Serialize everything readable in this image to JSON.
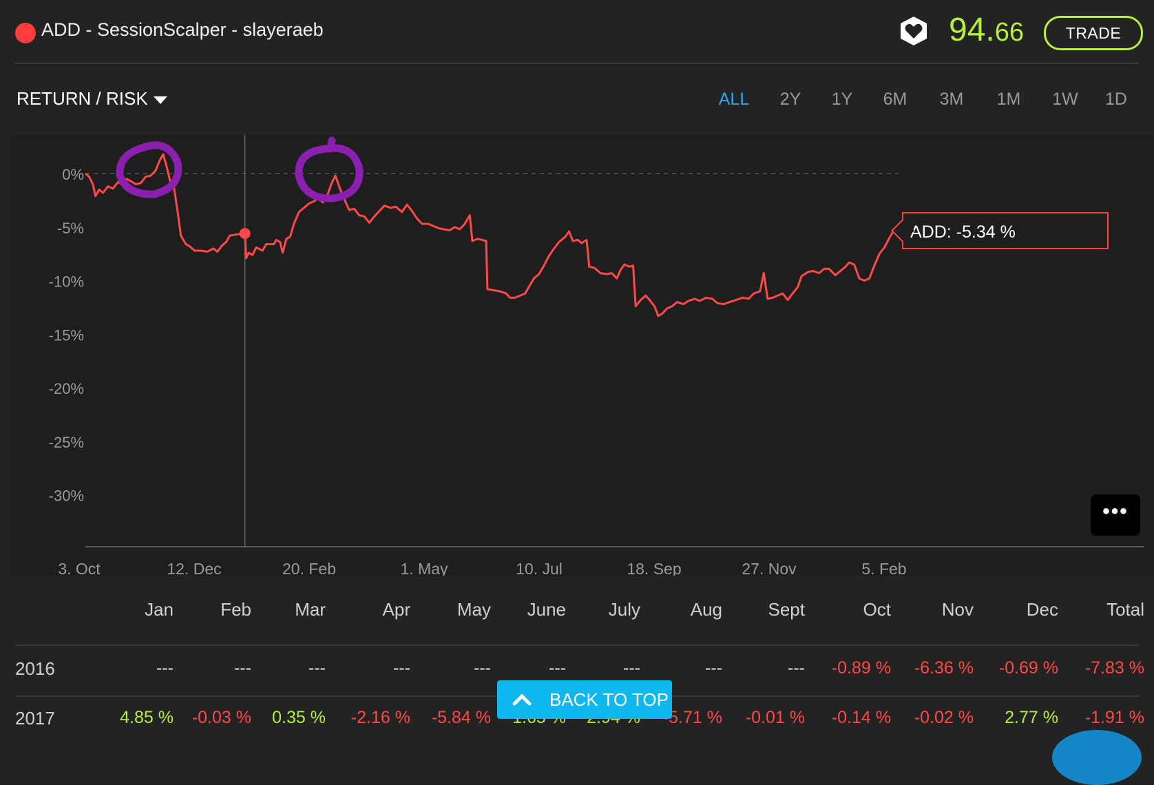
{
  "header": {
    "title": "ADD - SessionScalper - slayeraeb",
    "score_main": "94.",
    "score_decimal": "66",
    "trade_label": "TRADE",
    "favorite_icon": "heart-shield-icon",
    "status_color": "#ff3b3b"
  },
  "toolbar": {
    "metric_label": "RETURN / RISK",
    "ranges": [
      "ALL",
      "2Y",
      "1Y",
      "6M",
      "3M",
      "1M",
      "1W",
      "1D"
    ],
    "active_range": "ALL"
  },
  "chart_data": {
    "type": "line",
    "title": "",
    "xlabel": "",
    "ylabel": "",
    "ylim": [
      -35,
      2
    ],
    "y_ticks": [
      "0%",
      "-5%",
      "-10%",
      "-15%",
      "-20%",
      "-25%",
      "-30%"
    ],
    "y_tick_values": [
      0,
      -5,
      -10,
      -15,
      -20,
      -25,
      -30
    ],
    "x_ticks": [
      "3. Oct",
      "12. Dec",
      "20. Feb",
      "1. May",
      "10. Jul",
      "18. Sep",
      "27. Nov",
      "5. Feb"
    ],
    "x_range_weeks": [
      0,
      70
    ],
    "grid": false,
    "zero_line": "dashed",
    "series": [
      {
        "name": "ADD",
        "color": "#ff4848",
        "points": [
          [
            0.0,
            0.0
          ],
          [
            0.3,
            -0.3
          ],
          [
            0.6,
            -1.0
          ],
          [
            0.8,
            -2.1
          ],
          [
            1.1,
            -1.5
          ],
          [
            1.4,
            -1.8
          ],
          [
            1.8,
            -1.2
          ],
          [
            2.2,
            -1.4
          ],
          [
            2.6,
            -0.8
          ],
          [
            3.0,
            -1.1
          ],
          [
            3.3,
            -0.5
          ],
          [
            3.6,
            -0.7
          ],
          [
            4.0,
            -1.0
          ],
          [
            4.4,
            -0.9
          ],
          [
            4.8,
            -0.3
          ],
          [
            5.2,
            -0.2
          ],
          [
            5.6,
            0.3
          ],
          [
            5.9,
            1.2
          ],
          [
            6.2,
            1.8
          ],
          [
            6.5,
            0.5
          ],
          [
            6.8,
            -1.0
          ],
          [
            7.0,
            -0.9
          ],
          [
            7.3,
            -3.2
          ],
          [
            7.6,
            -5.8
          ],
          [
            8.0,
            -6.6
          ],
          [
            8.3,
            -6.8
          ],
          [
            8.7,
            -7.2
          ],
          [
            9.2,
            -7.2
          ],
          [
            9.7,
            -7.3
          ],
          [
            10.2,
            -7.0
          ],
          [
            10.5,
            -7.3
          ],
          [
            10.9,
            -6.7
          ],
          [
            11.2,
            -6.4
          ],
          [
            11.5,
            -5.8
          ],
          [
            12.0,
            -5.7
          ],
          [
            12.5,
            -5.6
          ],
          [
            12.7,
            -5.6
          ],
          [
            12.8,
            -7.9
          ],
          [
            13.0,
            -7.4
          ],
          [
            13.3,
            -7.6
          ],
          [
            13.6,
            -6.9
          ],
          [
            14.1,
            -7.2
          ],
          [
            14.4,
            -6.6
          ],
          [
            14.7,
            -6.6
          ],
          [
            15.0,
            -6.6
          ],
          [
            15.2,
            -6.2
          ],
          [
            15.5,
            -6.4
          ],
          [
            15.7,
            -7.4
          ],
          [
            16.0,
            -6.1
          ],
          [
            16.3,
            -5.9
          ],
          [
            16.6,
            -4.7
          ],
          [
            17.0,
            -3.6
          ],
          [
            17.4,
            -3.2
          ],
          [
            17.8,
            -2.8
          ],
          [
            18.2,
            -2.6
          ],
          [
            18.5,
            -2.3
          ],
          [
            18.9,
            -2.7
          ],
          [
            19.3,
            -1.9
          ],
          [
            19.6,
            -0.9
          ],
          [
            19.9,
            -0.2
          ],
          [
            20.2,
            -1.2
          ],
          [
            20.5,
            -2.1
          ],
          [
            21.0,
            -3.4
          ],
          [
            21.4,
            -3.3
          ],
          [
            21.8,
            -3.9
          ],
          [
            22.2,
            -4.0
          ],
          [
            22.6,
            -4.6
          ],
          [
            23.0,
            -4.0
          ],
          [
            23.4,
            -3.5
          ],
          [
            23.8,
            -3.0
          ],
          [
            24.3,
            -3.2
          ],
          [
            24.7,
            -3.1
          ],
          [
            25.2,
            -3.6
          ],
          [
            25.6,
            -2.9
          ],
          [
            26.0,
            -3.5
          ],
          [
            26.4,
            -4.2
          ],
          [
            26.8,
            -4.7
          ],
          [
            27.3,
            -4.7
          ],
          [
            27.7,
            -4.9
          ],
          [
            28.1,
            -5.1
          ],
          [
            28.5,
            -5.2
          ],
          [
            29.0,
            -5.3
          ],
          [
            29.4,
            -5.0
          ],
          [
            29.8,
            -5.2
          ],
          [
            30.2,
            -4.7
          ],
          [
            30.6,
            -3.9
          ],
          [
            30.8,
            -6.3
          ],
          [
            31.2,
            -6.1
          ],
          [
            31.6,
            -6.2
          ],
          [
            31.9,
            -6.3
          ],
          [
            32.0,
            -10.8
          ],
          [
            32.5,
            -10.9
          ],
          [
            33.0,
            -11.0
          ],
          [
            33.5,
            -11.2
          ],
          [
            33.8,
            -11.6
          ],
          [
            34.2,
            -11.6
          ],
          [
            34.6,
            -11.4
          ],
          [
            35.0,
            -11.2
          ],
          [
            35.3,
            -10.6
          ],
          [
            35.7,
            -9.8
          ],
          [
            36.1,
            -9.4
          ],
          [
            36.5,
            -8.6
          ],
          [
            36.9,
            -7.7
          ],
          [
            37.3,
            -7.0
          ],
          [
            37.7,
            -6.4
          ],
          [
            38.2,
            -5.9
          ],
          [
            38.5,
            -5.4
          ],
          [
            38.8,
            -6.3
          ],
          [
            39.2,
            -6.2
          ],
          [
            39.5,
            -6.5
          ],
          [
            39.9,
            -6.2
          ],
          [
            40.1,
            -8.7
          ],
          [
            40.5,
            -8.8
          ],
          [
            41.0,
            -9.3
          ],
          [
            41.5,
            -9.4
          ],
          [
            41.9,
            -9.3
          ],
          [
            42.3,
            -9.8
          ],
          [
            42.6,
            -9.0
          ],
          [
            42.9,
            -8.5
          ],
          [
            43.3,
            -8.7
          ],
          [
            43.6,
            -8.6
          ],
          [
            43.8,
            -12.4
          ],
          [
            44.2,
            -11.8
          ],
          [
            44.6,
            -11.4
          ],
          [
            44.9,
            -11.8
          ],
          [
            45.3,
            -12.4
          ],
          [
            45.6,
            -13.3
          ],
          [
            45.9,
            -13.1
          ],
          [
            46.3,
            -12.6
          ],
          [
            46.7,
            -12.4
          ],
          [
            47.1,
            -12.0
          ],
          [
            47.6,
            -12.2
          ],
          [
            48.0,
            -11.9
          ],
          [
            48.5,
            -11.7
          ],
          [
            48.9,
            -11.9
          ],
          [
            49.4,
            -11.6
          ],
          [
            49.9,
            -11.7
          ],
          [
            50.3,
            -12.1
          ],
          [
            50.8,
            -12.2
          ],
          [
            51.3,
            -12.0
          ],
          [
            51.8,
            -11.8
          ],
          [
            52.3,
            -11.6
          ],
          [
            52.8,
            -11.7
          ],
          [
            53.2,
            -11.2
          ],
          [
            53.7,
            -11.0
          ],
          [
            54.0,
            -9.3
          ],
          [
            54.3,
            -11.7
          ],
          [
            54.7,
            -11.6
          ],
          [
            55.1,
            -11.4
          ],
          [
            55.5,
            -11.2
          ],
          [
            55.9,
            -11.8
          ],
          [
            56.3,
            -11.2
          ],
          [
            56.7,
            -10.6
          ],
          [
            57.0,
            -9.6
          ],
          [
            57.5,
            -9.2
          ],
          [
            57.9,
            -9.1
          ],
          [
            58.4,
            -9.3
          ],
          [
            58.8,
            -8.9
          ],
          [
            59.2,
            -8.9
          ],
          [
            59.7,
            -9.5
          ],
          [
            60.1,
            -9.1
          ],
          [
            60.5,
            -8.7
          ],
          [
            60.8,
            -8.3
          ],
          [
            61.2,
            -8.5
          ],
          [
            61.6,
            -9.8
          ],
          [
            62.0,
            -10.0
          ],
          [
            62.4,
            -9.8
          ],
          [
            62.8,
            -8.6
          ],
          [
            63.2,
            -7.5
          ],
          [
            63.6,
            -6.9
          ],
          [
            64.0,
            -6.0
          ],
          [
            64.3,
            -5.4
          ],
          [
            64.6,
            -5.4
          ],
          [
            64.9,
            -5.34
          ]
        ]
      }
    ],
    "tooltip": "ADD: -5.34 %",
    "crosshair_marker": [
      12.7,
      -5.6
    ]
  },
  "monthly": {
    "months": [
      "Jan",
      "Feb",
      "Mar",
      "Apr",
      "May",
      "June",
      "July",
      "Aug",
      "Sept",
      "Oct",
      "Nov",
      "Dec",
      "Total"
    ],
    "rows": [
      {
        "year": "2016",
        "values": [
          "---",
          "---",
          "---",
          "---",
          "---",
          "---",
          "---",
          "---",
          "---",
          "-0.89 %",
          "-6.36 %",
          "-0.69 %",
          "-7.83 %"
        ],
        "kinds": [
          "nil",
          "nil",
          "nil",
          "nil",
          "nil",
          "nil",
          "nil",
          "nil",
          "nil",
          "neg",
          "neg",
          "neg",
          "neg"
        ]
      },
      {
        "year": "2017",
        "values": [
          "4.85 %",
          "-0.03 %",
          "0.35 %",
          "-2.16 %",
          "-5.84 %",
          "1.65 %",
          "2.94 %",
          "-5.71 %",
          "-0.01 %",
          "-0.14 %",
          "-0.02 %",
          "2.77 %",
          "-1.91 %"
        ],
        "kinds": [
          "pos",
          "neg",
          "pos",
          "neg",
          "neg",
          "pos",
          "pos",
          "neg",
          "neg",
          "neg",
          "neg",
          "pos",
          "neg"
        ]
      }
    ]
  },
  "more_label": "•••",
  "back_to_top": "BACK TO TOP",
  "colors": {
    "accent": "#b6f03c",
    "negative": "#ff4848",
    "active_tab": "#29a8ef",
    "annotation": "#8a1fb0"
  }
}
